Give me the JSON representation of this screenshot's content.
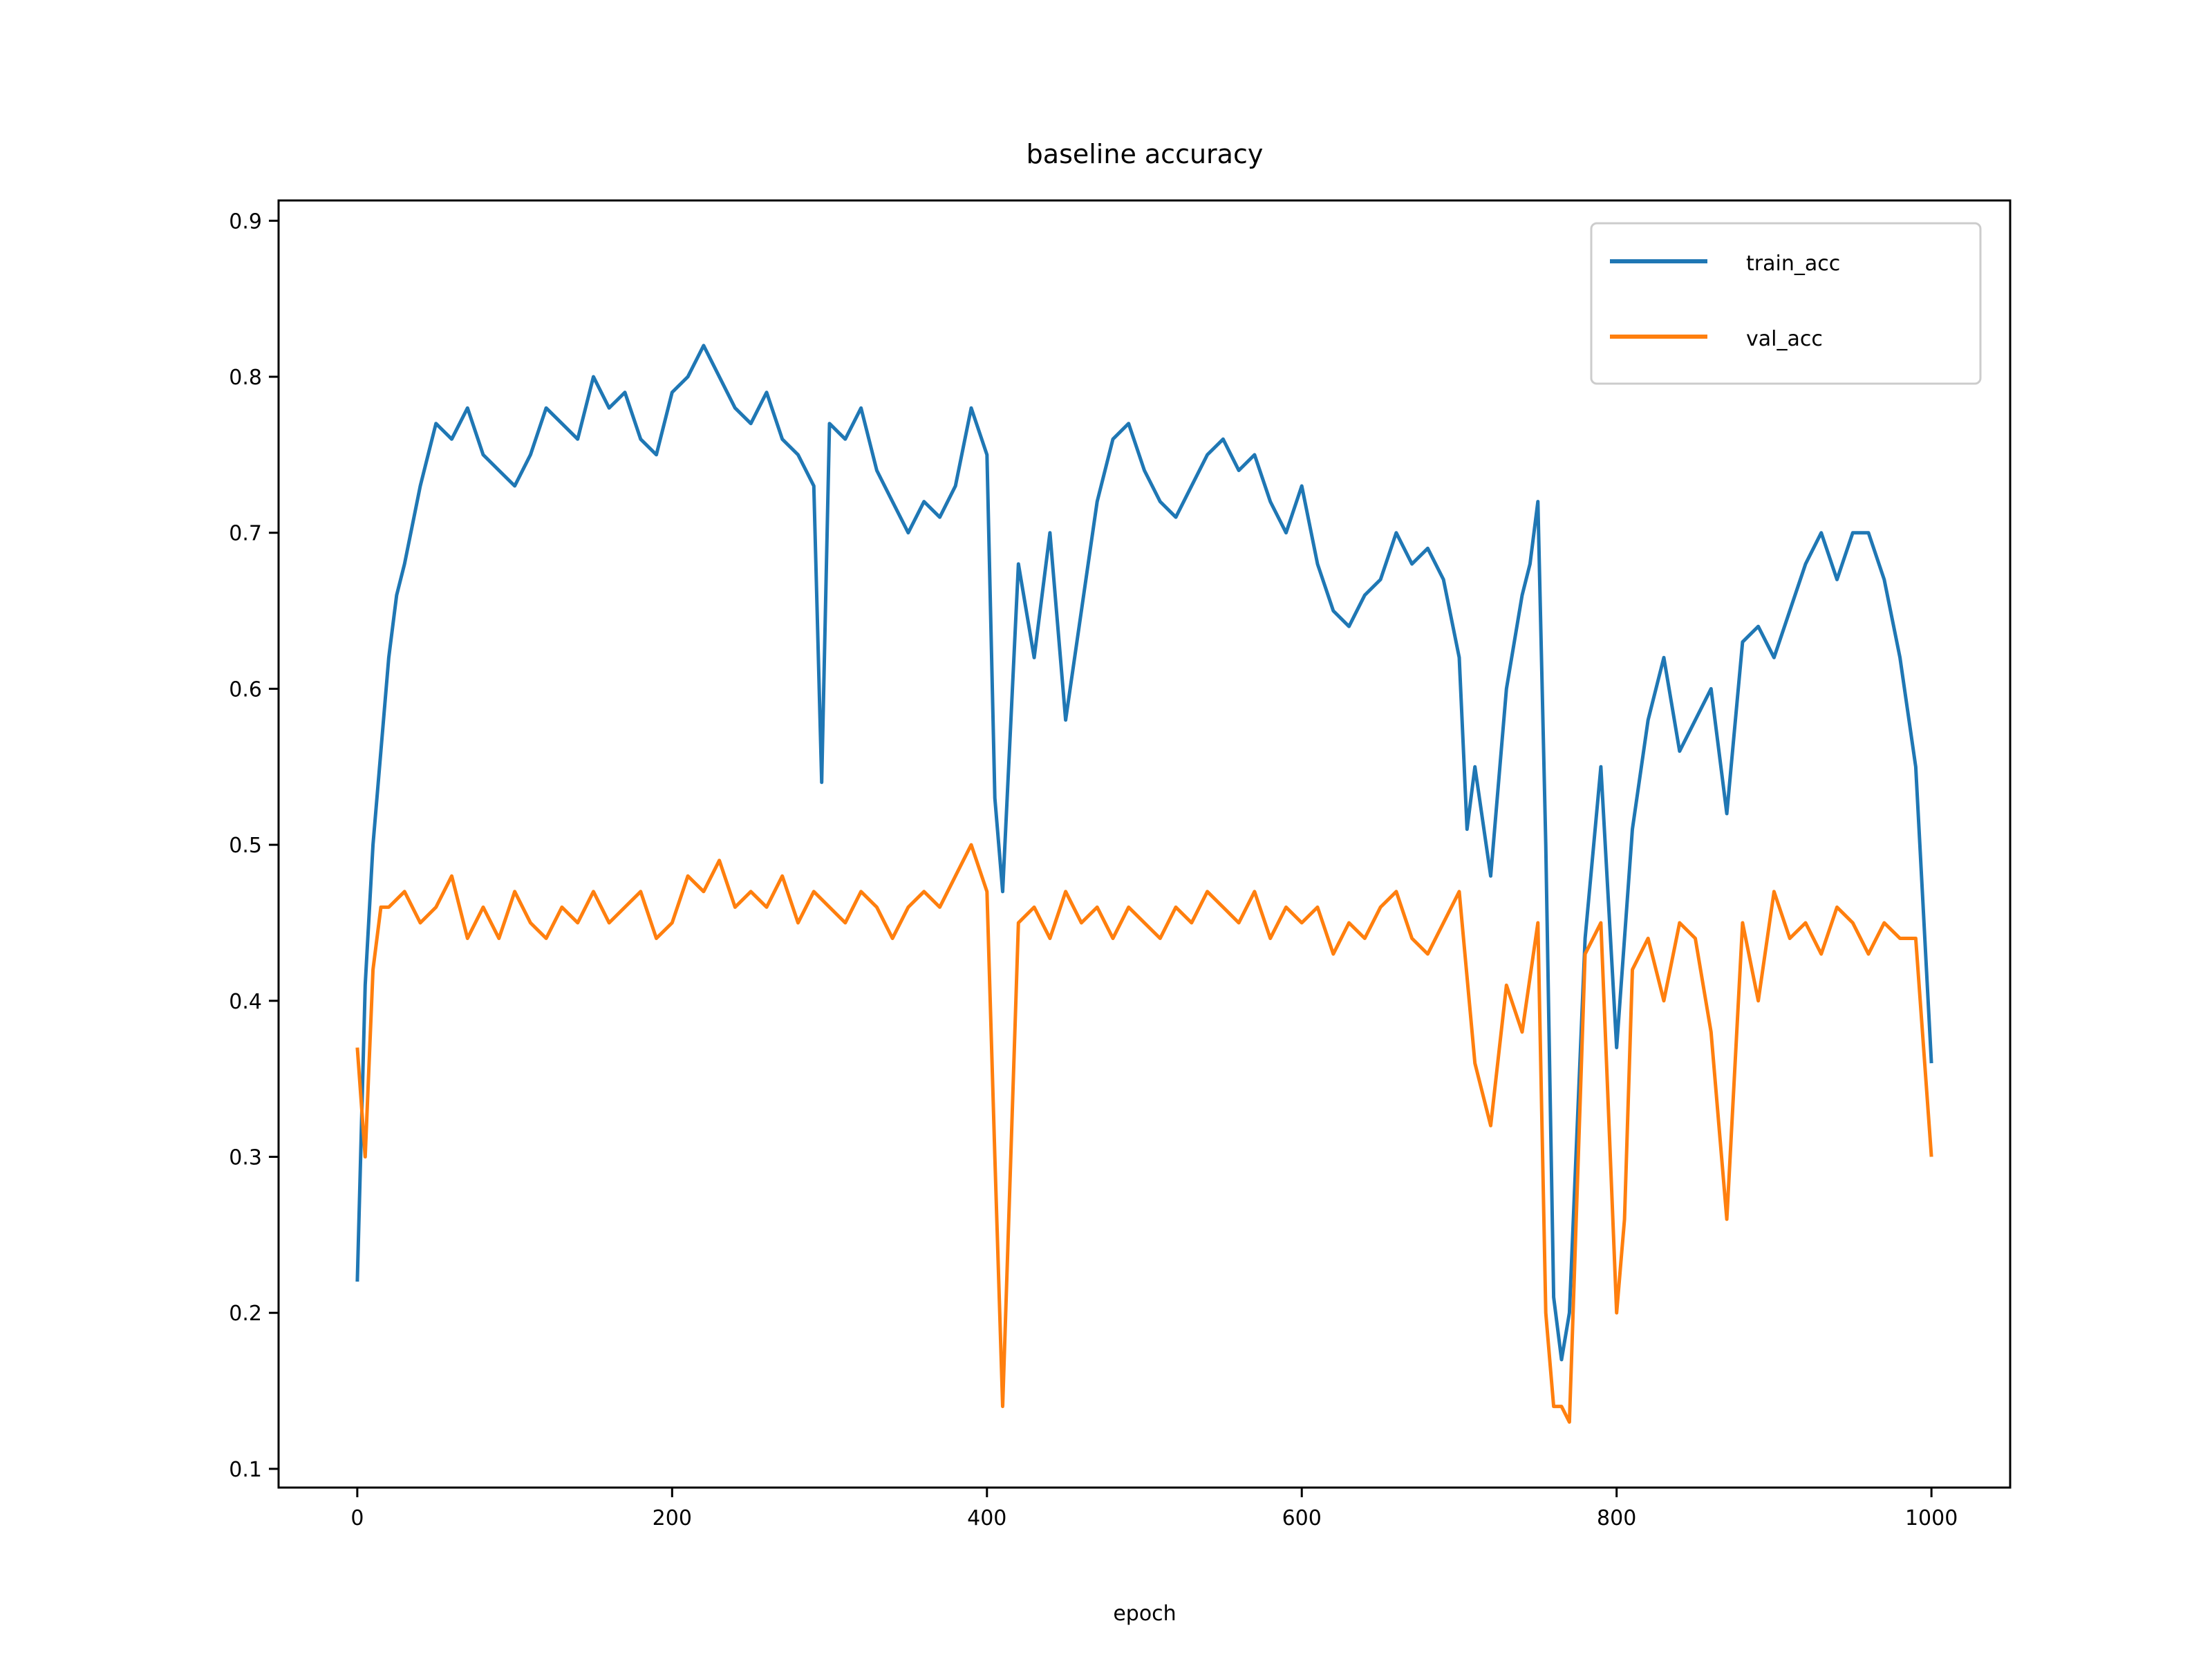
{
  "chart_data": {
    "type": "line",
    "title": "baseline accuracy",
    "xlabel": "epoch",
    "ylabel": "",
    "xlim": [
      -50,
      1050
    ],
    "ylim": [
      0.088,
      0.913
    ],
    "x_ticks": [
      0,
      200,
      400,
      600,
      800,
      1000
    ],
    "y_ticks": [
      0.1,
      0.2,
      0.3,
      0.4,
      0.5,
      0.6,
      0.7,
      0.8,
      0.9
    ],
    "x_tick_labels": [
      "0",
      "200",
      "400",
      "600",
      "800",
      "1000"
    ],
    "y_tick_labels": [
      "0.1",
      "0.2",
      "0.3",
      "0.4",
      "0.5",
      "0.6",
      "0.7",
      "0.8",
      "0.9"
    ],
    "grid": false,
    "legend_position": "top-right",
    "series": [
      {
        "name": "train_acc",
        "color": "#1f77b4",
        "x": [
          0,
          5,
          10,
          15,
          20,
          25,
          30,
          40,
          50,
          60,
          70,
          80,
          90,
          100,
          110,
          120,
          130,
          140,
          150,
          160,
          170,
          180,
          190,
          200,
          210,
          220,
          230,
          240,
          250,
          260,
          270,
          280,
          290,
          295,
          300,
          310,
          320,
          330,
          340,
          350,
          360,
          370,
          380,
          390,
          400,
          405,
          410,
          420,
          430,
          440,
          450,
          460,
          470,
          480,
          490,
          500,
          510,
          520,
          530,
          540,
          550,
          560,
          570,
          580,
          590,
          600,
          610,
          620,
          630,
          640,
          650,
          660,
          670,
          680,
          690,
          700,
          705,
          710,
          720,
          730,
          740,
          745,
          750,
          755,
          760,
          765,
          770,
          780,
          790,
          800,
          810,
          820,
          830,
          840,
          850,
          860,
          870,
          880,
          890,
          900,
          910,
          920,
          930,
          940,
          950,
          960,
          970,
          980,
          990,
          1000
        ],
        "y": [
          0.22,
          0.41,
          0.5,
          0.56,
          0.62,
          0.66,
          0.68,
          0.73,
          0.77,
          0.76,
          0.78,
          0.75,
          0.74,
          0.73,
          0.75,
          0.78,
          0.77,
          0.76,
          0.8,
          0.78,
          0.79,
          0.76,
          0.75,
          0.79,
          0.8,
          0.82,
          0.8,
          0.78,
          0.77,
          0.79,
          0.76,
          0.75,
          0.73,
          0.54,
          0.77,
          0.76,
          0.78,
          0.74,
          0.72,
          0.7,
          0.72,
          0.71,
          0.73,
          0.78,
          0.75,
          0.53,
          0.47,
          0.68,
          0.62,
          0.7,
          0.58,
          0.65,
          0.72,
          0.76,
          0.77,
          0.74,
          0.72,
          0.71,
          0.73,
          0.75,
          0.76,
          0.74,
          0.75,
          0.72,
          0.7,
          0.73,
          0.68,
          0.65,
          0.64,
          0.66,
          0.67,
          0.7,
          0.68,
          0.69,
          0.67,
          0.62,
          0.51,
          0.55,
          0.48,
          0.6,
          0.66,
          0.68,
          0.72,
          0.5,
          0.21,
          0.17,
          0.2,
          0.44,
          0.55,
          0.37,
          0.51,
          0.58,
          0.62,
          0.56,
          0.58,
          0.6,
          0.52,
          0.63,
          0.64,
          0.62,
          0.65,
          0.68,
          0.7,
          0.67,
          0.7,
          0.7,
          0.67,
          0.62,
          0.55,
          0.36
        ]
      },
      {
        "name": "val_acc",
        "color": "#ff7f0e",
        "x": [
          0,
          5,
          10,
          15,
          20,
          30,
          40,
          50,
          60,
          70,
          80,
          90,
          100,
          110,
          120,
          130,
          140,
          150,
          160,
          170,
          180,
          190,
          200,
          210,
          220,
          230,
          240,
          250,
          260,
          270,
          280,
          290,
          300,
          310,
          320,
          330,
          340,
          350,
          360,
          370,
          380,
          390,
          400,
          405,
          410,
          420,
          430,
          440,
          450,
          460,
          470,
          480,
          490,
          500,
          510,
          520,
          530,
          540,
          550,
          560,
          570,
          580,
          590,
          600,
          610,
          620,
          630,
          640,
          650,
          660,
          670,
          680,
          690,
          700,
          710,
          720,
          730,
          740,
          750,
          755,
          760,
          765,
          770,
          780,
          790,
          800,
          805,
          810,
          820,
          830,
          840,
          850,
          860,
          870,
          880,
          890,
          900,
          910,
          920,
          930,
          940,
          950,
          960,
          970,
          980,
          990,
          1000
        ],
        "y": [
          0.37,
          0.3,
          0.42,
          0.46,
          0.46,
          0.47,
          0.45,
          0.46,
          0.48,
          0.44,
          0.46,
          0.44,
          0.47,
          0.45,
          0.44,
          0.46,
          0.45,
          0.47,
          0.45,
          0.46,
          0.47,
          0.44,
          0.45,
          0.48,
          0.47,
          0.49,
          0.46,
          0.47,
          0.46,
          0.48,
          0.45,
          0.47,
          0.46,
          0.45,
          0.47,
          0.46,
          0.44,
          0.46,
          0.47,
          0.46,
          0.48,
          0.5,
          0.47,
          0.3,
          0.14,
          0.45,
          0.46,
          0.44,
          0.47,
          0.45,
          0.46,
          0.44,
          0.46,
          0.45,
          0.44,
          0.46,
          0.45,
          0.47,
          0.46,
          0.45,
          0.47,
          0.44,
          0.46,
          0.45,
          0.46,
          0.43,
          0.45,
          0.44,
          0.46,
          0.47,
          0.44,
          0.43,
          0.45,
          0.47,
          0.36,
          0.32,
          0.41,
          0.38,
          0.45,
          0.2,
          0.14,
          0.14,
          0.13,
          0.43,
          0.45,
          0.2,
          0.26,
          0.42,
          0.44,
          0.4,
          0.45,
          0.44,
          0.38,
          0.26,
          0.45,
          0.4,
          0.47,
          0.44,
          0.45,
          0.43,
          0.46,
          0.45,
          0.43,
          0.45,
          0.44,
          0.44,
          0.3
        ]
      }
    ]
  }
}
